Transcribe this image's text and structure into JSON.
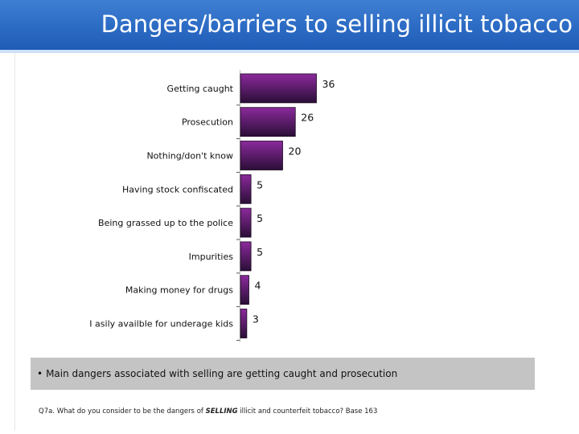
{
  "header": {
    "title": "Dangers/barriers to selling illicit tobacco"
  },
  "chart_data": {
    "type": "bar",
    "orientation": "horizontal",
    "categories": [
      "Getting caught",
      "Prosecution",
      "Nothing/don't know",
      "Having stock confiscated",
      "Being grassed up to the police",
      "Impurities",
      "Making money for drugs",
      "I asily availble for underage kids"
    ],
    "values": [
      36,
      26,
      20,
      5,
      5,
      5,
      4,
      3
    ],
    "xlim": [
      0,
      40
    ],
    "grid": false,
    "legend": "none",
    "colors": {
      "bar_top": "#8b2a9c",
      "bar_bottom": "#2a0e36",
      "bar_stroke": "#1a0820"
    }
  },
  "summary": {
    "bullet": "•",
    "text": "Main dangers associated with selling are getting caught and prosecution"
  },
  "footnote": {
    "before": "Q7a. What do you consider to be the dangers of",
    "emphasis": "SELLING",
    "after": "illicit and counterfeit tobacco? Base 163"
  }
}
